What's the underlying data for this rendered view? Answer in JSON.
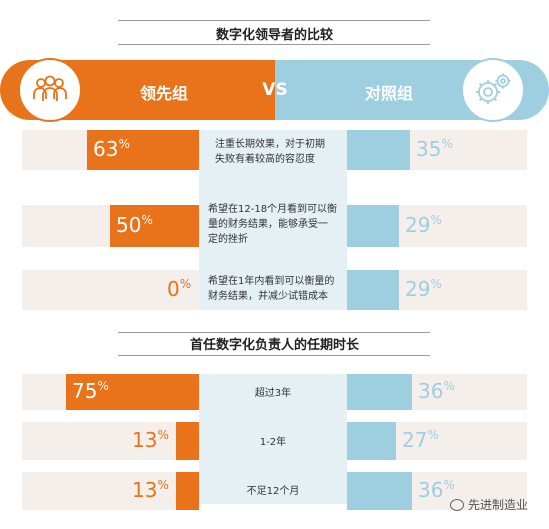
{
  "chart_data": [
    {
      "type": "bar",
      "title": "数字化领导者的比较",
      "group_left": "领先组",
      "group_right": "对照组",
      "vs_label": "VS",
      "categories": [
        "注重长期效果，对于初期失败有着较高的容忍度",
        "希望在12-18个月看到可以衡量的财务结果，能够承受一定的挫折",
        "希望在1年内看到可以衡量的财务结果，并减少试错成本"
      ],
      "series": [
        {
          "name": "领先组",
          "values": [
            63,
            50,
            0
          ],
          "labels": [
            "63%",
            "50%",
            "0%"
          ]
        },
        {
          "name": "对照组",
          "values": [
            35,
            29,
            29
          ],
          "labels": [
            "35%",
            "29%",
            "29%"
          ]
        }
      ]
    },
    {
      "type": "bar",
      "title": "首任数字化负责人的任期时长",
      "categories": [
        "超过3年",
        "1-2年",
        "不足12个月"
      ],
      "series": [
        {
          "name": "领先组",
          "values": [
            75,
            13,
            13
          ],
          "labels": [
            "75%",
            "13%",
            "13%"
          ]
        },
        {
          "name": "对照组",
          "values": [
            36,
            27,
            36
          ],
          "labels": [
            "36%",
            "27%",
            "36%"
          ]
        }
      ]
    }
  ],
  "desc_lines": [
    [
      "注重长期效果，对于初期",
      "失败有着较高的容忍度"
    ],
    [
      "希望在12-18个月看到可以衡",
      "量的财务结果，能够承受一",
      "定的挫折"
    ],
    [
      "希望在1年内看到可以衡量的",
      "财务结果，并减少试错成本"
    ]
  ],
  "colors": {
    "orange": "#e8731a",
    "blue": "#9ecfe0",
    "row_bg": "#f4efea",
    "center_bg": "#e4f0f4"
  },
  "icons": {
    "left": "people-group-icon",
    "right": "gears-icon",
    "watermark": "wechat-icon"
  },
  "watermark": "先进制造业"
}
